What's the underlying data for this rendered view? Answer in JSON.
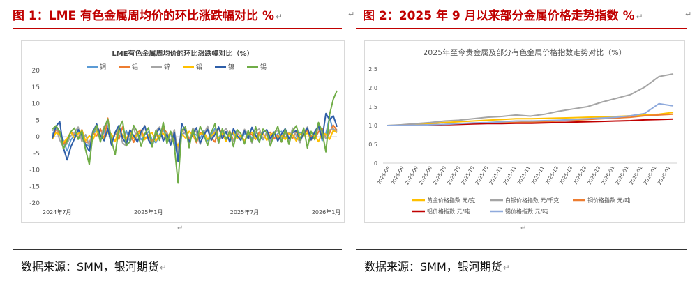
{
  "left": {
    "title": "图 1：LME 有色金属周均价的环比涨跌幅对比 %",
    "source": "数据来源：SMM，银河期货",
    "chart_title": "LME有色金属周均价的环比涨跌幅对比（%）"
  },
  "right": {
    "title": "图 2：2025 年 9 月以来部分金属价格走势指数 %",
    "source": "数据来源：SMM，银河期货",
    "chart_title": "2025年至今贵金属及部分有色金属价格指数走势对比（%）"
  },
  "return_mark": "↵",
  "col_mark": "↵",
  "chart_data": [
    {
      "type": "line",
      "title": "LME有色金属周均价的环比涨跌幅对比（%）",
      "ylim": [
        -20,
        20
      ],
      "yticks": [
        20,
        15,
        10,
        5,
        0,
        -5,
        -10,
        -15,
        -20
      ],
      "xticklabels": [
        "2024年7月",
        "2025年1月",
        "2025年7月",
        "2026年1月"
      ],
      "xtick_positions": [
        0,
        26,
        52,
        78
      ],
      "legend_position": "top",
      "series": [
        {
          "name": "铜",
          "color": "#5b9bd5",
          "values": [
            0.5,
            2.8,
            1.2,
            -1.2,
            -4.3,
            -1.0,
            0.5,
            1.6,
            -0.5,
            -2.2,
            -3.0,
            0.8,
            2.1,
            -0.8,
            1.4,
            3.3,
            -1.6,
            0.9,
            2.4,
            -0.6,
            1.8,
            -1.4,
            0.2,
            1.2,
            -0.9,
            0.6,
            1.5,
            -0.9,
            -1.8,
            0.7,
            2.2,
            -0.5,
            0.8,
            -1.8,
            -6.3,
            0.6,
            1.3,
            -0.8,
            1.1,
            0.5,
            -0.6,
            1.8,
            -1.2,
            0.4,
            2.5,
            -0.5,
            1.7,
            -0.8,
            1.1,
            0.5,
            1.9,
            -0.6,
            0.8,
            1.5,
            -0.7,
            1.2,
            0.6,
            -0.9,
            1.1,
            0.4,
            -0.5,
            0.9,
            1.6,
            -0.4,
            1.1,
            0.6,
            -0.8,
            1.3,
            0.9,
            2.1,
            -0.7,
            1.4,
            2.8,
            -1.2,
            0.9,
            5.9,
            1.6,
            2.3
          ]
        },
        {
          "name": "铝",
          "color": "#ed7d31",
          "values": [
            -0.3,
            2.2,
            0.8,
            -2.3,
            -1.1,
            1.5,
            0.7,
            -0.4,
            2.1,
            -1.6,
            -1.9,
            1.1,
            0.3,
            2.4,
            -0.7,
            5.6,
            -2.0,
            1.4,
            -0.8,
            2.9,
            -0.5,
            0.9,
            -1.7,
            1.3,
            2.0,
            -0.6,
            0.4,
            -1.5,
            0.9,
            -0.8,
            2.7,
            1.1,
            -1.3,
            0.5,
            -3.4,
            1.4,
            2.6,
            -0.9,
            0.6,
            -1.8,
            1.2,
            0.7,
            2.3,
            -0.4,
            -1.6,
            2.8,
            0.5,
            -0.9,
            1.7,
            -1.2,
            0.8,
            0.3,
            -1.5,
            1.1,
            0.6,
            -0.8,
            1.4,
            -0.5,
            0.8,
            1.3,
            -0.7,
            0.5,
            -1.6,
            1.2,
            0.9,
            -0.5,
            1.6,
            -1.1,
            0.7,
            1.9,
            0.3,
            -0.8,
            1.5,
            2.5,
            -0.6,
            1.1,
            3.5,
            1.8
          ]
        },
        {
          "name": "锌",
          "color": "#a5a5a5",
          "values": [
            1.8,
            2.5,
            -1.0,
            -3.2,
            -2.1,
            0.3,
            1.2,
            2.9,
            -1.5,
            0.6,
            -2.8,
            1.9,
            2.4,
            -0.2,
            3.1,
            4.5,
            -1.4,
            0.8,
            2.6,
            -1.9,
            -2.8,
            1.1,
            2.7,
            -1.2,
            0.5,
            3.4,
            -0.6,
            -2.5,
            1.7,
            2.9,
            -0.8,
            1.2,
            -1.4,
            2.1,
            -4.9,
            1.9,
            0.8,
            -1.8,
            2.6,
            1.4,
            -2.3,
            0.7,
            3.2,
            -0.5,
            1.8,
            -2.0,
            1.1,
            2.5,
            0.4,
            -1.3,
            1.9,
            -0.8,
            2.2,
            0.6,
            -1.9,
            1.5,
            2.4,
            -0.7,
            1.3,
            -1.6,
            0.9,
            2.0,
            -0.4,
            1.5,
            -1.2,
            2.6,
            0.3,
            -1.8,
            1.2,
            2.9,
            -1.1,
            0.8,
            2.3,
            1.2,
            -0.6,
            2.0,
            2.4,
            1.5
          ]
        },
        {
          "name": "铅",
          "color": "#ffc000",
          "values": [
            -0.8,
            1.2,
            0.6,
            -1.7,
            -0.6,
            1.4,
            -0.5,
            0.9,
            1.8,
            -1.2,
            0.3,
            -0.9,
            1.6,
            0.4,
            -0.7,
            1.3,
            0.8,
            -1.5,
            2.1,
            0.5,
            -1.0,
            1.9,
            -0.4,
            0.7,
            1.5,
            -0.9,
            0.6,
            1.2,
            -1.3,
            0.4,
            1.0,
            -0.6,
            1.5,
            -0.9,
            -2.8,
            0.8,
            -0.4,
            1.6,
            0.5,
            -1.1,
            0.7,
            1.4,
            -0.8,
            0.3,
            1.2,
            -0.6,
            0.9,
            -1.4,
            0.6,
            1.1,
            -0.5,
            0.4,
            -1.2,
            0.8,
            1.3,
            -0.7,
            0.5,
            0.9,
            -1.1,
            0.6,
            1.2,
            -0.5,
            0.4,
            -0.9,
            1.0,
            0.6,
            -1.3,
            0.8,
            0.3,
            1.1,
            -0.6,
            0.4,
            -1.5,
            1.2,
            0.7,
            -0.8,
            1.9,
            1.2
          ]
        },
        {
          "name": "镍",
          "color": "#2e5ea8",
          "values": [
            -0.5,
            3.2,
            4.5,
            -3.4,
            -7.0,
            -3.1,
            -0.6,
            2.1,
            0.4,
            -2.6,
            -4.4,
            1.5,
            3.8,
            0.3,
            -1.2,
            2.4,
            -2.5,
            1.3,
            3.4,
            -0.4,
            -2.2,
            2.0,
            0.3,
            -1.6,
            1.5,
            3.2,
            -1.0,
            -2.8,
            0.8,
            2.5,
            -1.3,
            0.7,
            -2.5,
            1.2,
            -7.5,
            4.0,
            1.6,
            -1.6,
            0.8,
            2.7,
            -1.9,
            0.5,
            2.2,
            -1.1,
            0.6,
            2.9,
            -0.6,
            1.5,
            -1.6,
            2.4,
            0.3,
            -1.1,
            1.7,
            -0.6,
            2.8,
            0.4,
            -1.5,
            1.3,
            2.1,
            -0.7,
            1.4,
            -1.3,
            0.8,
            2.4,
            -0.6,
            1.2,
            1.8,
            -1.0,
            0.6,
            2.6,
            -0.9,
            1.5,
            3.3,
            -0.6,
            7.0,
            5.1,
            6.3,
            3.0
          ]
        },
        {
          "name": "锡",
          "color": "#70ad47",
          "values": [
            2.3,
            3.3,
            1.5,
            -3.7,
            -1.3,
            1.5,
            2.6,
            -0.8,
            1.7,
            -4.0,
            -8.4,
            1.1,
            3.4,
            -1.6,
            2.5,
            5.3,
            -1.1,
            -5.4,
            2.6,
            4.7,
            -2.7,
            -1.5,
            3.4,
            1.4,
            -2.9,
            0.8,
            2.7,
            -3.1,
            1.9,
            -1.1,
            4.3,
            -2.1,
            1.6,
            -2.8,
            -14.0,
            1.9,
            3.0,
            -3.3,
            2.2,
            -1.4,
            3.1,
            0.6,
            -2.6,
            1.2,
            3.9,
            -1.8,
            2.4,
            -0.8,
            1.6,
            -3.0,
            2.1,
            0.9,
            -2.2,
            1.9,
            -1.6,
            3.0,
            -1.7,
            2.3,
            1.2,
            -2.8,
            0.8,
            3.1,
            -1.6,
            2.2,
            -2.3,
            1.7,
            3.3,
            -1.0,
            2.6,
            -3.4,
            1.6,
            -0.9,
            4.3,
            1.5,
            -4.6,
            6.7,
            11.3,
            13.9
          ]
        }
      ]
    },
    {
      "type": "line",
      "title": "2025年至今贵金属及部分有色金属价格指数走势对比（%）",
      "ylim": [
        0,
        2.5
      ],
      "yticks": [
        "2.5",
        "2.0",
        "1.5",
        "1.0",
        "0.5",
        "0"
      ],
      "xticklabels": [
        "2025-09",
        "2025-09",
        "2025-09",
        "2025-09",
        "2025-10",
        "2025-10",
        "2025-10",
        "2025-10",
        "2025-11",
        "2025-11",
        "2025-11",
        "2025-11",
        "2025-12",
        "2025-12",
        "2025-12",
        "2025-12",
        "2026-01",
        "2026-01",
        "2026-01",
        "2026-01",
        "2026-01"
      ],
      "legend_position": "bottom",
      "series": [
        {
          "name": "黄金价格指数 元/克",
          "color": "#ffc000",
          "values": [
            1.0,
            1.01,
            1.03,
            1.05,
            1.08,
            1.1,
            1.12,
            1.14,
            1.16,
            1.18,
            1.18,
            1.19,
            1.2,
            1.21,
            1.22,
            1.23,
            1.24,
            1.26,
            1.28,
            1.3,
            1.35
          ]
        },
        {
          "name": "白银价格指数 元/千克",
          "color": "#a5a5a5",
          "values": [
            1.0,
            1.02,
            1.05,
            1.08,
            1.12,
            1.14,
            1.18,
            1.22,
            1.24,
            1.28,
            1.25,
            1.3,
            1.38,
            1.44,
            1.5,
            1.62,
            1.72,
            1.82,
            2.02,
            2.3,
            2.37
          ]
        },
        {
          "name": "铜价格指数 元/吨",
          "color": "#ed7d31",
          "values": [
            1.0,
            1.0,
            1.01,
            1.02,
            1.03,
            1.04,
            1.05,
            1.06,
            1.07,
            1.08,
            1.09,
            1.1,
            1.12,
            1.14,
            1.16,
            1.18,
            1.2,
            1.22,
            1.26,
            1.28,
            1.3
          ]
        },
        {
          "name": "铝价格指数 元/吨",
          "color": "#c00000",
          "values": [
            1.0,
            1.0,
            1.0,
            1.01,
            1.02,
            1.03,
            1.04,
            1.05,
            1.05,
            1.06,
            1.06,
            1.07,
            1.08,
            1.09,
            1.1,
            1.11,
            1.12,
            1.13,
            1.15,
            1.16,
            1.17
          ]
        },
        {
          "name": "锡价格指数 元/吨",
          "color": "#8faadc",
          "values": [
            1.0,
            1.0,
            1.01,
            1.02,
            1.03,
            1.05,
            1.07,
            1.08,
            1.1,
            1.12,
            1.12,
            1.13,
            1.14,
            1.16,
            1.18,
            1.2,
            1.22,
            1.26,
            1.32,
            1.58,
            1.52
          ]
        }
      ]
    }
  ]
}
